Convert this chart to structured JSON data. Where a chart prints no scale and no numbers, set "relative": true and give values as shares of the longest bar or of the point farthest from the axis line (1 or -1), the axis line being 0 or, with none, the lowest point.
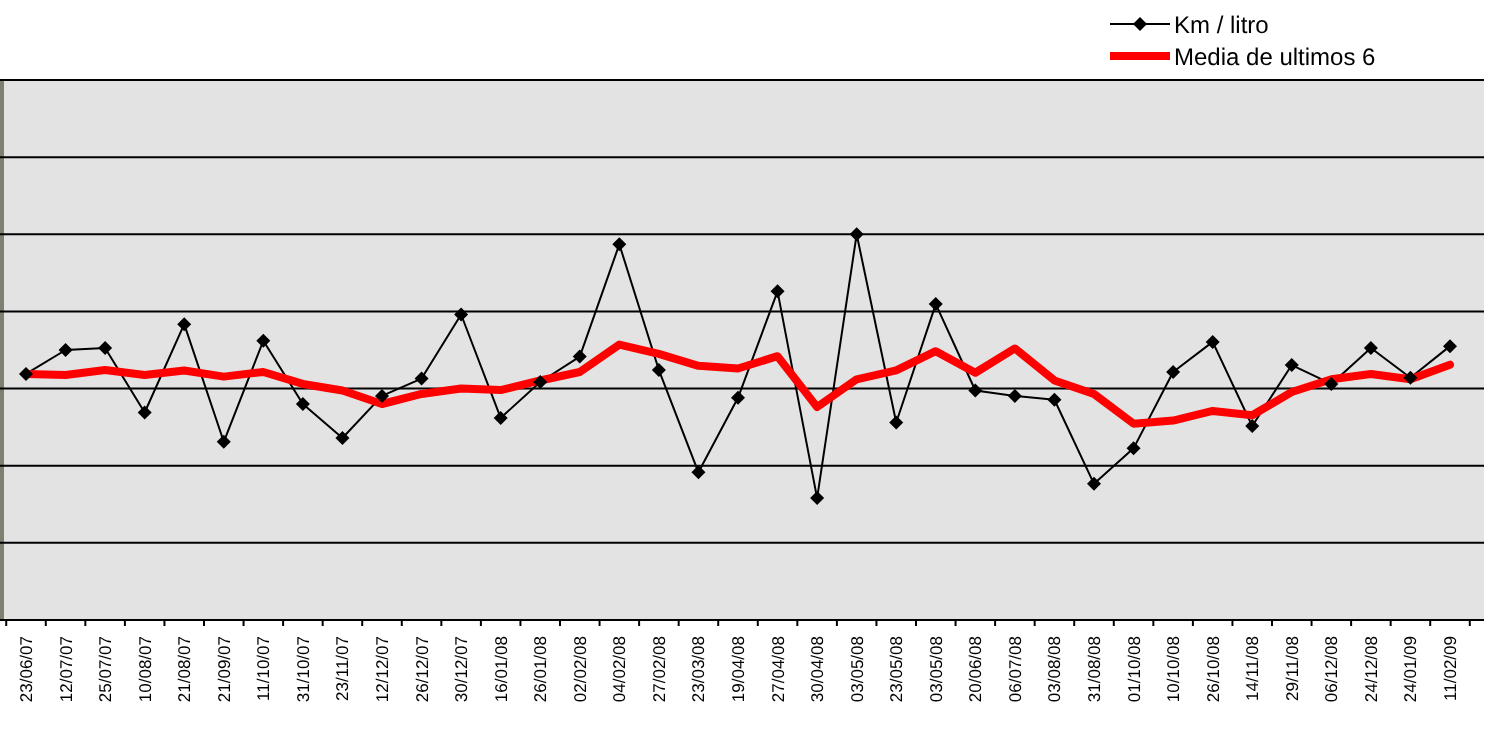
{
  "chart_data": {
    "type": "line",
    "relative": true,
    "grid": "y",
    "legend": "top right",
    "categories": [
      "23/06/07",
      "12/07/07",
      "25/07/07",
      "10/08/07",
      "21/08/07",
      "21/09/07",
      "11/10/07",
      "31/10/07",
      "23/11/07",
      "12/12/07",
      "26/12/07",
      "30/12/07",
      "16/01/08",
      "26/01/08",
      "02/02/08",
      "04/02/08",
      "27/02/08",
      "23/03/08",
      "19/04/08",
      "27/04/08",
      "30/04/08",
      "03/05/08",
      "23/05/08",
      "03/05/08",
      "20/06/08",
      "06/07/08",
      "03/08/08",
      "31/08/08",
      "01/10/08",
      "10/10/08",
      "26/10/08",
      "14/11/08",
      "29/11/08",
      "06/12/08",
      "24/12/08",
      "24/01/09",
      "11/02/09"
    ],
    "series": [
      {
        "name": "Km / litro",
        "color": "#000000",
        "marker": "diamond",
        "values": [
          0.638,
          0.7,
          0.705,
          0.538,
          0.767,
          0.462,
          0.724,
          0.56,
          0.472,
          0.581,
          0.626,
          0.792,
          0.524,
          0.617,
          0.683,
          0.974,
          0.648,
          0.383,
          0.576,
          0.852,
          0.316,
          1,
          0.512,
          0.819,
          0.595,
          0.581,
          0.571,
          0.353,
          0.445,
          0.643,
          0.721,
          0.503,
          0.661,
          0.612,
          0.705,
          0.628,
          0.71
        ]
      },
      {
        "name": "Media de ultimos 6",
        "color": "#ff0000",
        "marker": "none",
        "values": [
          0.638,
          0.635,
          0.648,
          0.635,
          0.647,
          0.631,
          0.643,
          0.612,
          0.595,
          0.56,
          0.586,
          0.6,
          0.596,
          0.621,
          0.643,
          0.714,
          0.69,
          0.659,
          0.652,
          0.684,
          0.552,
          0.624,
          0.647,
          0.697,
          0.641,
          0.704,
          0.621,
          0.586,
          0.509,
          0.517,
          0.542,
          0.531,
          0.591,
          0.624,
          0.638,
          0.624,
          0.662
        ]
      }
    ]
  }
}
